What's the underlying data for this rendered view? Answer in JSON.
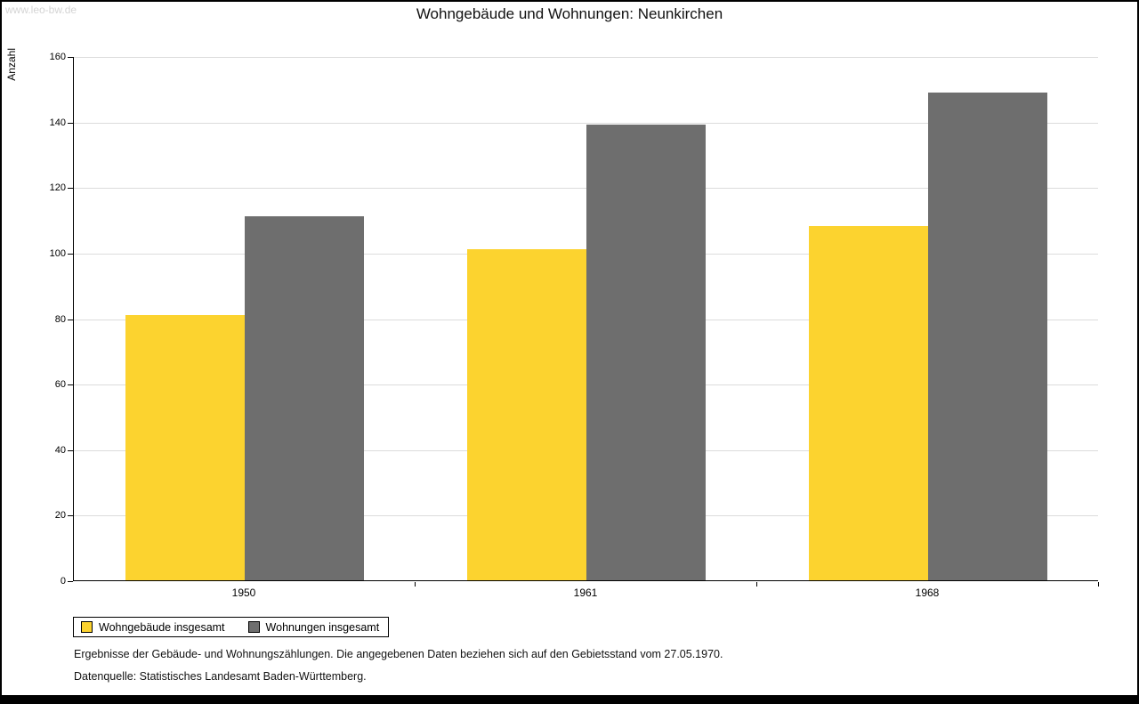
{
  "watermark": "www.leo-bw.de",
  "chart_data": {
    "type": "bar",
    "title": "Wohngebäude und Wohnungen: Neunkirchen",
    "xlabel": "",
    "ylabel": "Anzahl",
    "categories": [
      "1950",
      "1961",
      "1968"
    ],
    "series": [
      {
        "name": "Wohngebäude insgesamt",
        "color": "#FCD32F",
        "values": [
          81,
          101,
          108
        ]
      },
      {
        "name": "Wohnungen insgesamt",
        "color": "#6E6E6E",
        "values": [
          111,
          139,
          149
        ]
      }
    ],
    "ylim": [
      0,
      160
    ],
    "ytick_step": 20,
    "grid": true,
    "legend_position": "bottom-left"
  },
  "footnotes": [
    "Ergebnisse der Gebäude- und Wohnungszählungen. Die angegebenen Daten beziehen sich auf den Gebietsstand vom 27.05.1970.",
    "Datenquelle: Statistisches Landesamt Baden-Württemberg."
  ]
}
